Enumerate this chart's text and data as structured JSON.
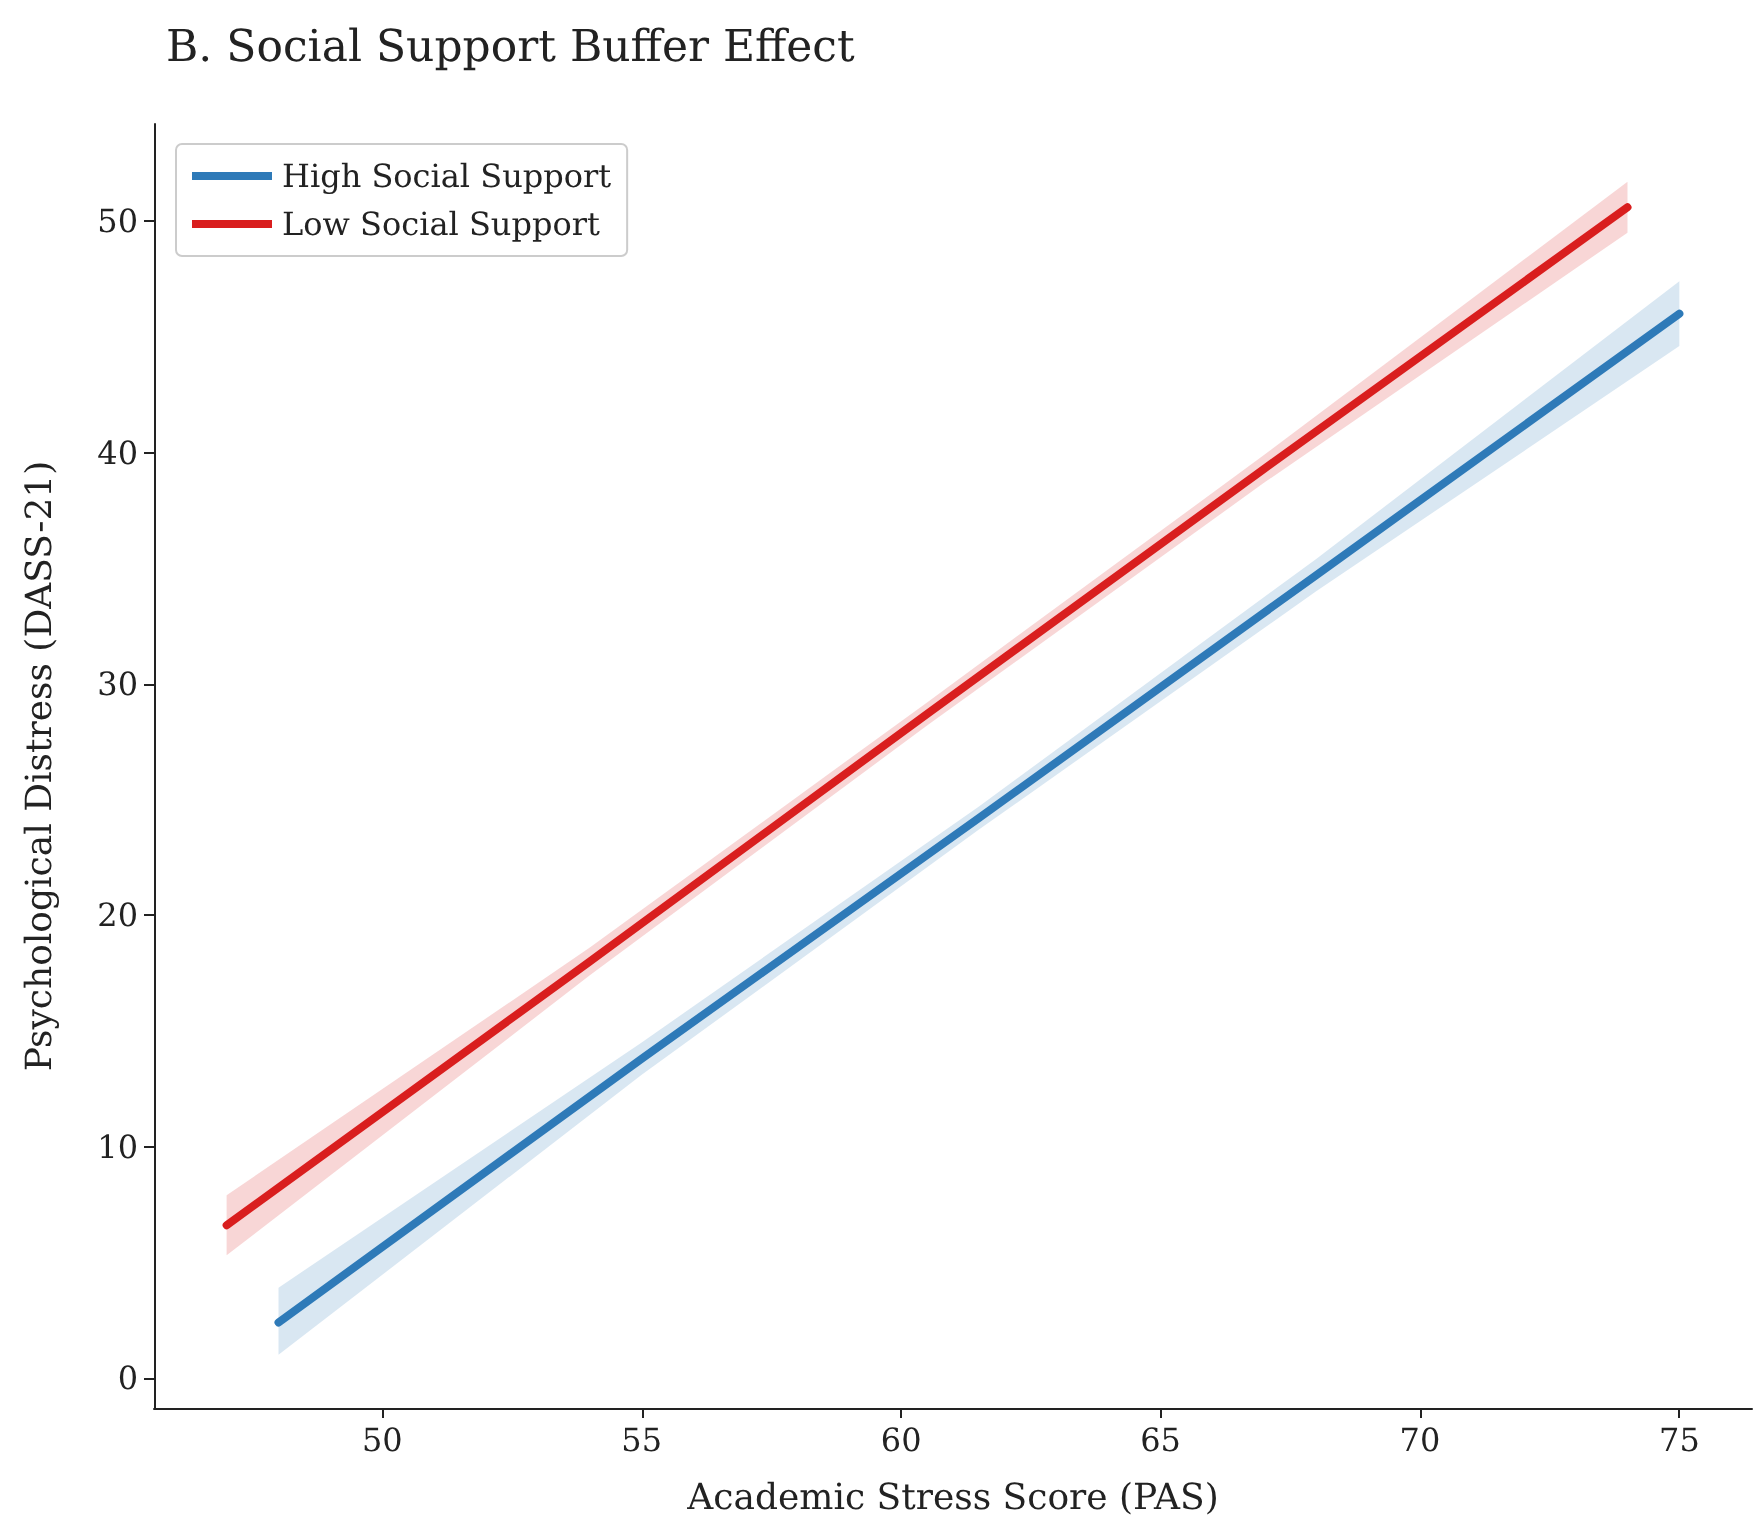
{
  "chart_data": {
    "type": "line",
    "title": "B. Social Support Buffer Effect",
    "xlabel": "Academic Stress Score (PAS)",
    "ylabel": "Psychological Distress (DASS-21)",
    "xlim": [
      45.6,
      76.4
    ],
    "xticks": [
      50,
      55,
      60,
      65,
      70,
      75
    ],
    "ylim": [
      -1.3,
      54.2
    ],
    "yticks": [
      0,
      10,
      20,
      30,
      40,
      50
    ],
    "series": [
      {
        "name": "High Social Support",
        "color": "#2e7ab8",
        "x": [
          48,
          55,
          61.5,
          68,
          75
        ],
        "values": [
          2.4,
          13.8,
          24.2,
          34.7,
          46.0
        ],
        "lower": [
          1.0,
          13.1,
          23.7,
          34.0,
          44.6
        ],
        "upper": [
          3.9,
          14.5,
          24.7,
          35.4,
          47.4
        ]
      },
      {
        "name": "Low Social Support",
        "color": "#d91e1e",
        "x": [
          47,
          54,
          60.5,
          67,
          74
        ],
        "values": [
          6.6,
          18.0,
          28.7,
          39.3,
          50.6
        ],
        "lower": [
          5.3,
          17.4,
          28.2,
          38.7,
          49.5
        ],
        "upper": [
          7.9,
          18.6,
          29.2,
          39.9,
          51.7
        ]
      }
    ],
    "legend": "top left",
    "grid": false,
    "marker": "none",
    "line_style": "solid"
  }
}
